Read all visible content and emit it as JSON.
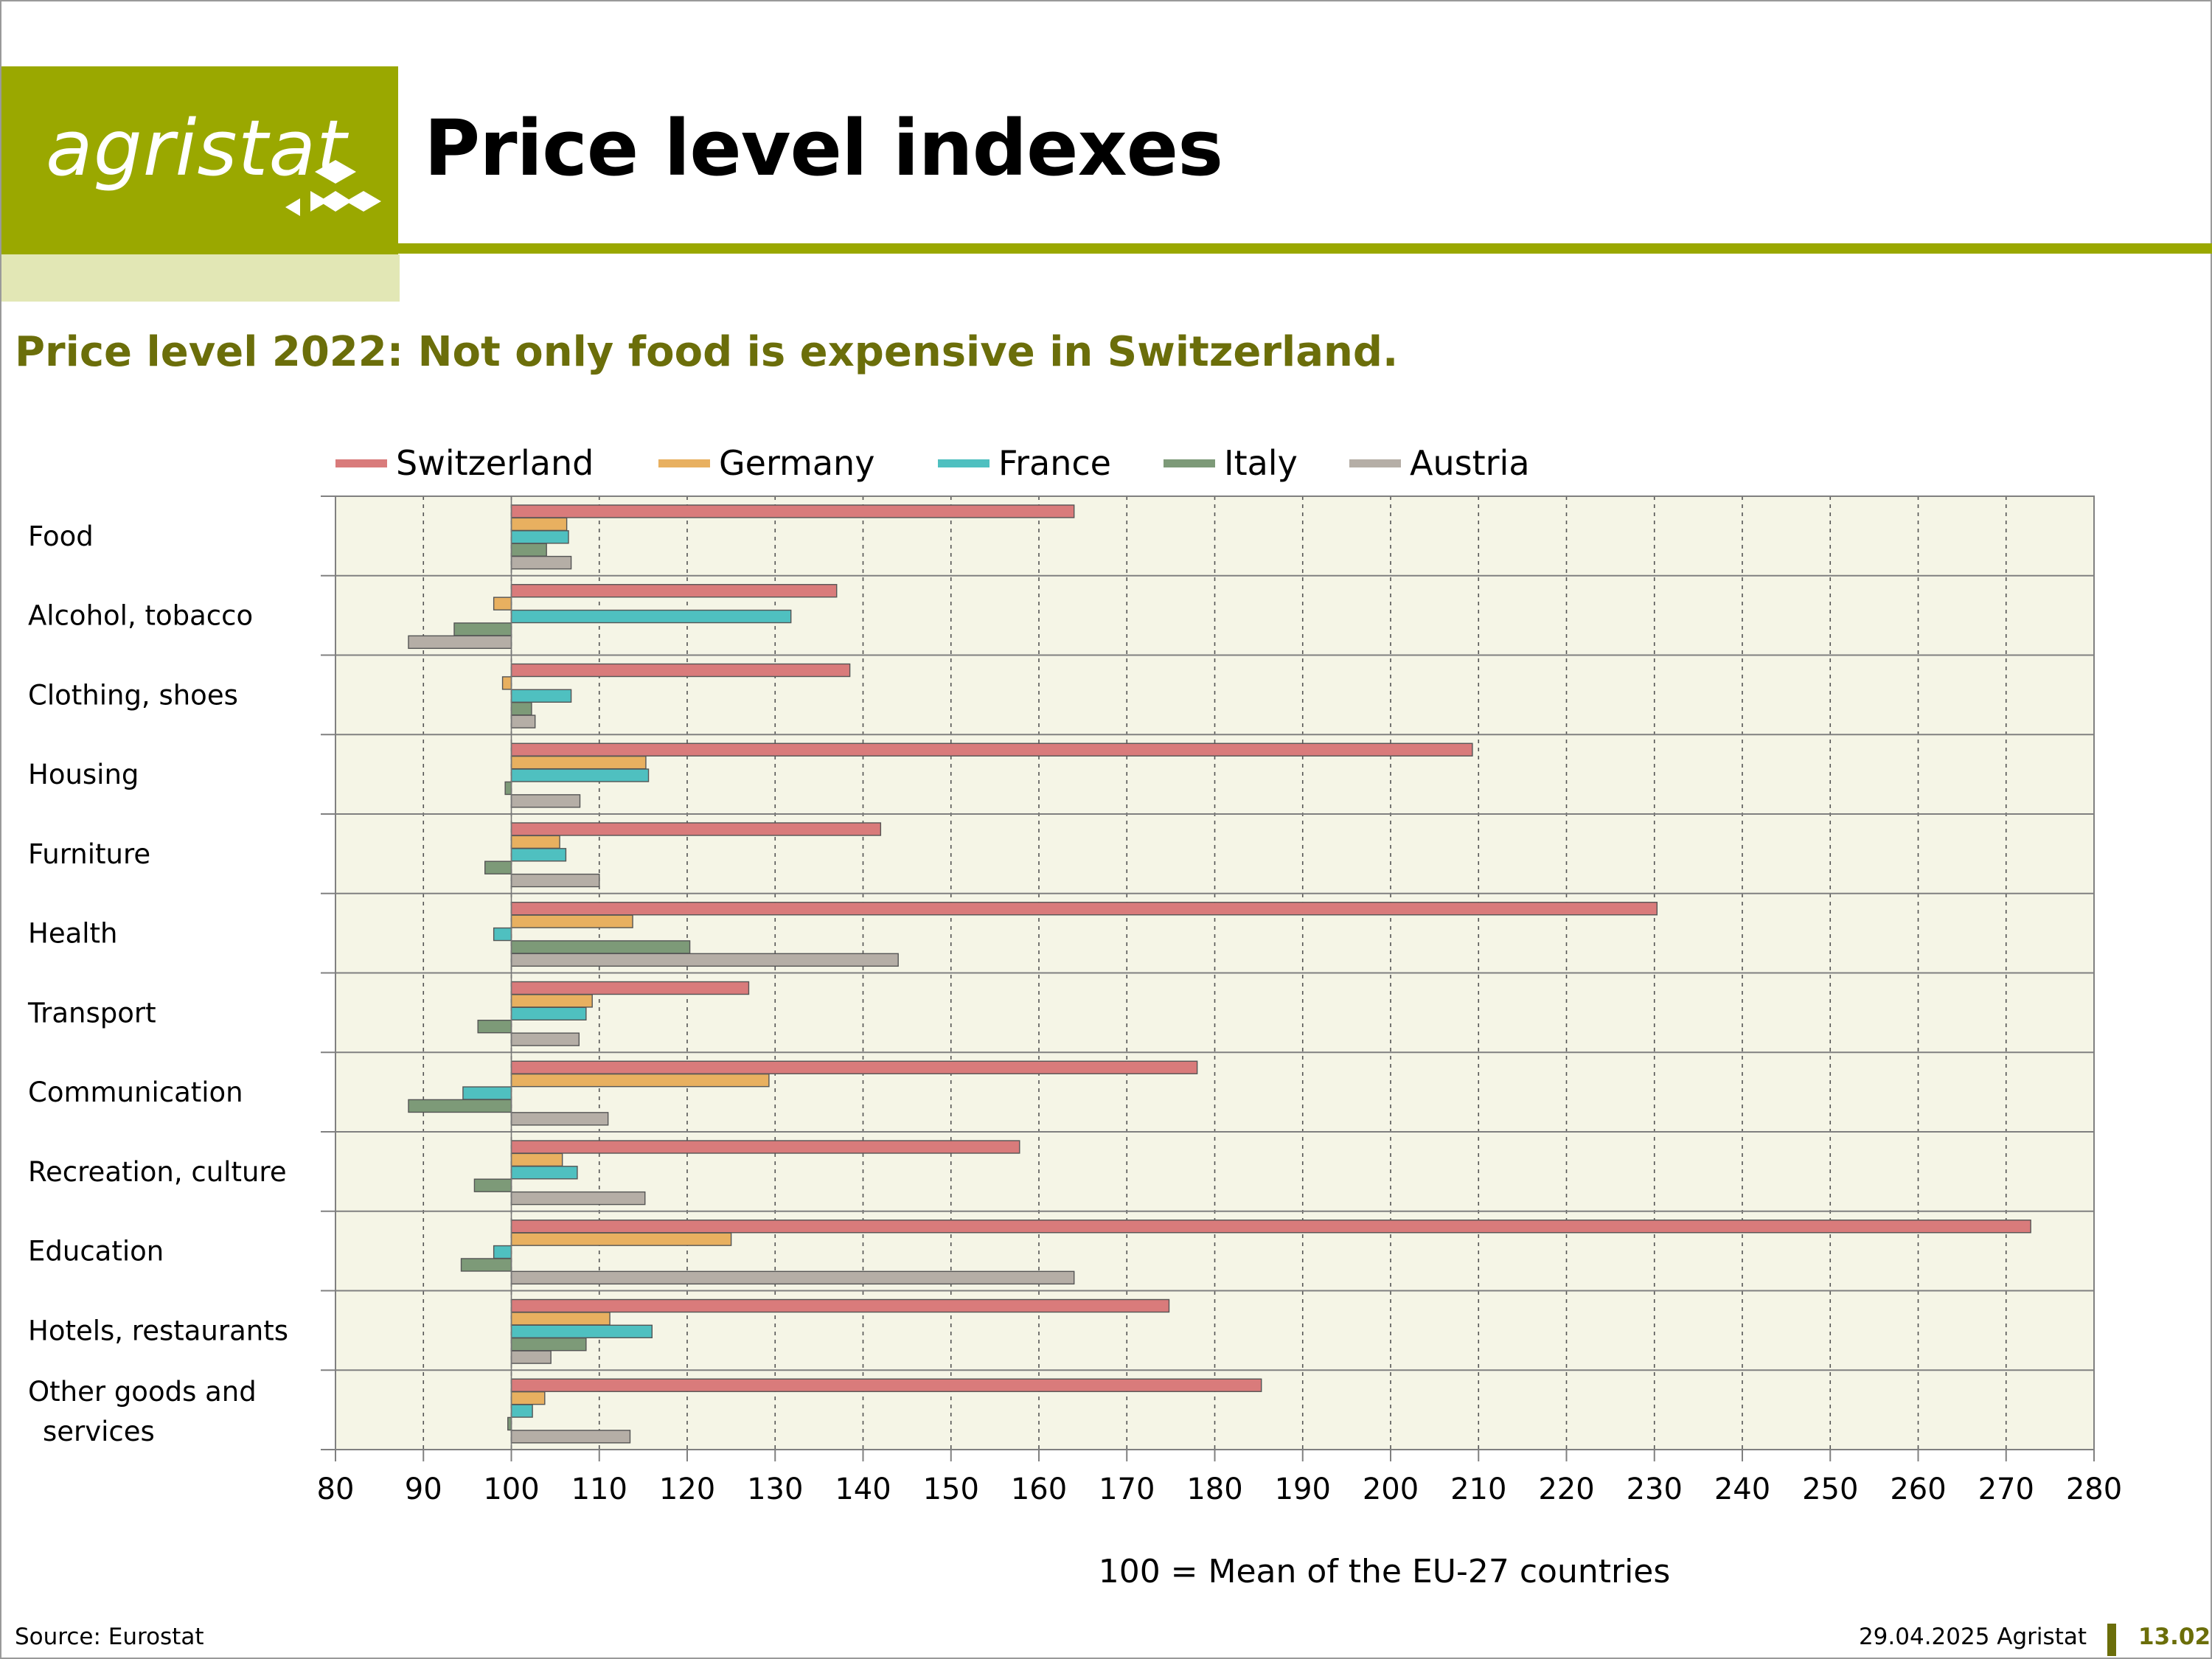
{
  "header": {
    "logo_text": "agristat",
    "title": "Price level indexes",
    "brand_color": "#9aa800"
  },
  "subtitle": "Price level 2022: Not only food is expensive in Switzerland.",
  "chart_data": {
    "type": "bar",
    "orientation": "horizontal",
    "baseline": 100,
    "categories": [
      "Food",
      "Alcohol, tobacco",
      "Clothing, shoes",
      "Housing",
      "Furniture",
      "Health",
      "Transport",
      "Communication",
      "Recreation, culture",
      "Education",
      "Hotels, restaurants",
      "Other goods and services"
    ],
    "category_lines": [
      [
        "Food"
      ],
      [
        "Alcohol, tobacco"
      ],
      [
        "Clothing, shoes"
      ],
      [
        "Housing"
      ],
      [
        "Furniture"
      ],
      [
        "Health"
      ],
      [
        "Transport"
      ],
      [
        "Communication"
      ],
      [
        "Recreation, culture"
      ],
      [
        "Education"
      ],
      [
        "Hotels, restaurants"
      ],
      [
        "Other goods and",
        "services"
      ]
    ],
    "series": [
      {
        "name": "Switzerland",
        "color": "#d97b7b",
        "values": [
          164,
          137,
          138.5,
          209.3,
          142,
          230.3,
          127,
          178,
          157.8,
          272.8,
          174.8,
          185.3
        ]
      },
      {
        "name": "Germany",
        "color": "#e8b060",
        "values": [
          106.3,
          98,
          99,
          115.3,
          105.5,
          113.8,
          109.2,
          129.3,
          105.8,
          125,
          111.2,
          103.8
        ]
      },
      {
        "name": "France",
        "color": "#4fc0c0",
        "values": [
          106.5,
          131.8,
          106.8,
          115.6,
          106.2,
          98,
          108.5,
          94.5,
          107.5,
          98,
          116,
          102.4
        ]
      },
      {
        "name": "Italy",
        "color": "#7d9a78",
        "values": [
          104,
          93.5,
          102.3,
          99.3,
          97,
          120.3,
          96.2,
          88.3,
          95.8,
          94.3,
          108.5,
          99.6
        ]
      },
      {
        "name": "Austria",
        "color": "#b5aea6",
        "values": [
          106.8,
          88.3,
          102.7,
          107.8,
          110,
          144,
          107.7,
          111,
          115.2,
          164,
          104.5,
          113.5
        ]
      }
    ],
    "xlim": [
      80,
      280
    ],
    "xticks": [
      "80",
      "90",
      "100",
      "110",
      "120",
      "130",
      "140",
      "150",
      "160",
      "170",
      "180",
      "190",
      "200",
      "210",
      "220",
      "230",
      "240",
      "250",
      "260",
      "270",
      "280"
    ],
    "xlabel": "100 = Mean of the EU-27 countries",
    "grid": "vertical dashed",
    "legend": "top",
    "plot_background": "#f5f5e6"
  },
  "footer": {
    "source": "Source: Eurostat",
    "date": "29.04.2025 Agristat",
    "page": "13.02"
  }
}
